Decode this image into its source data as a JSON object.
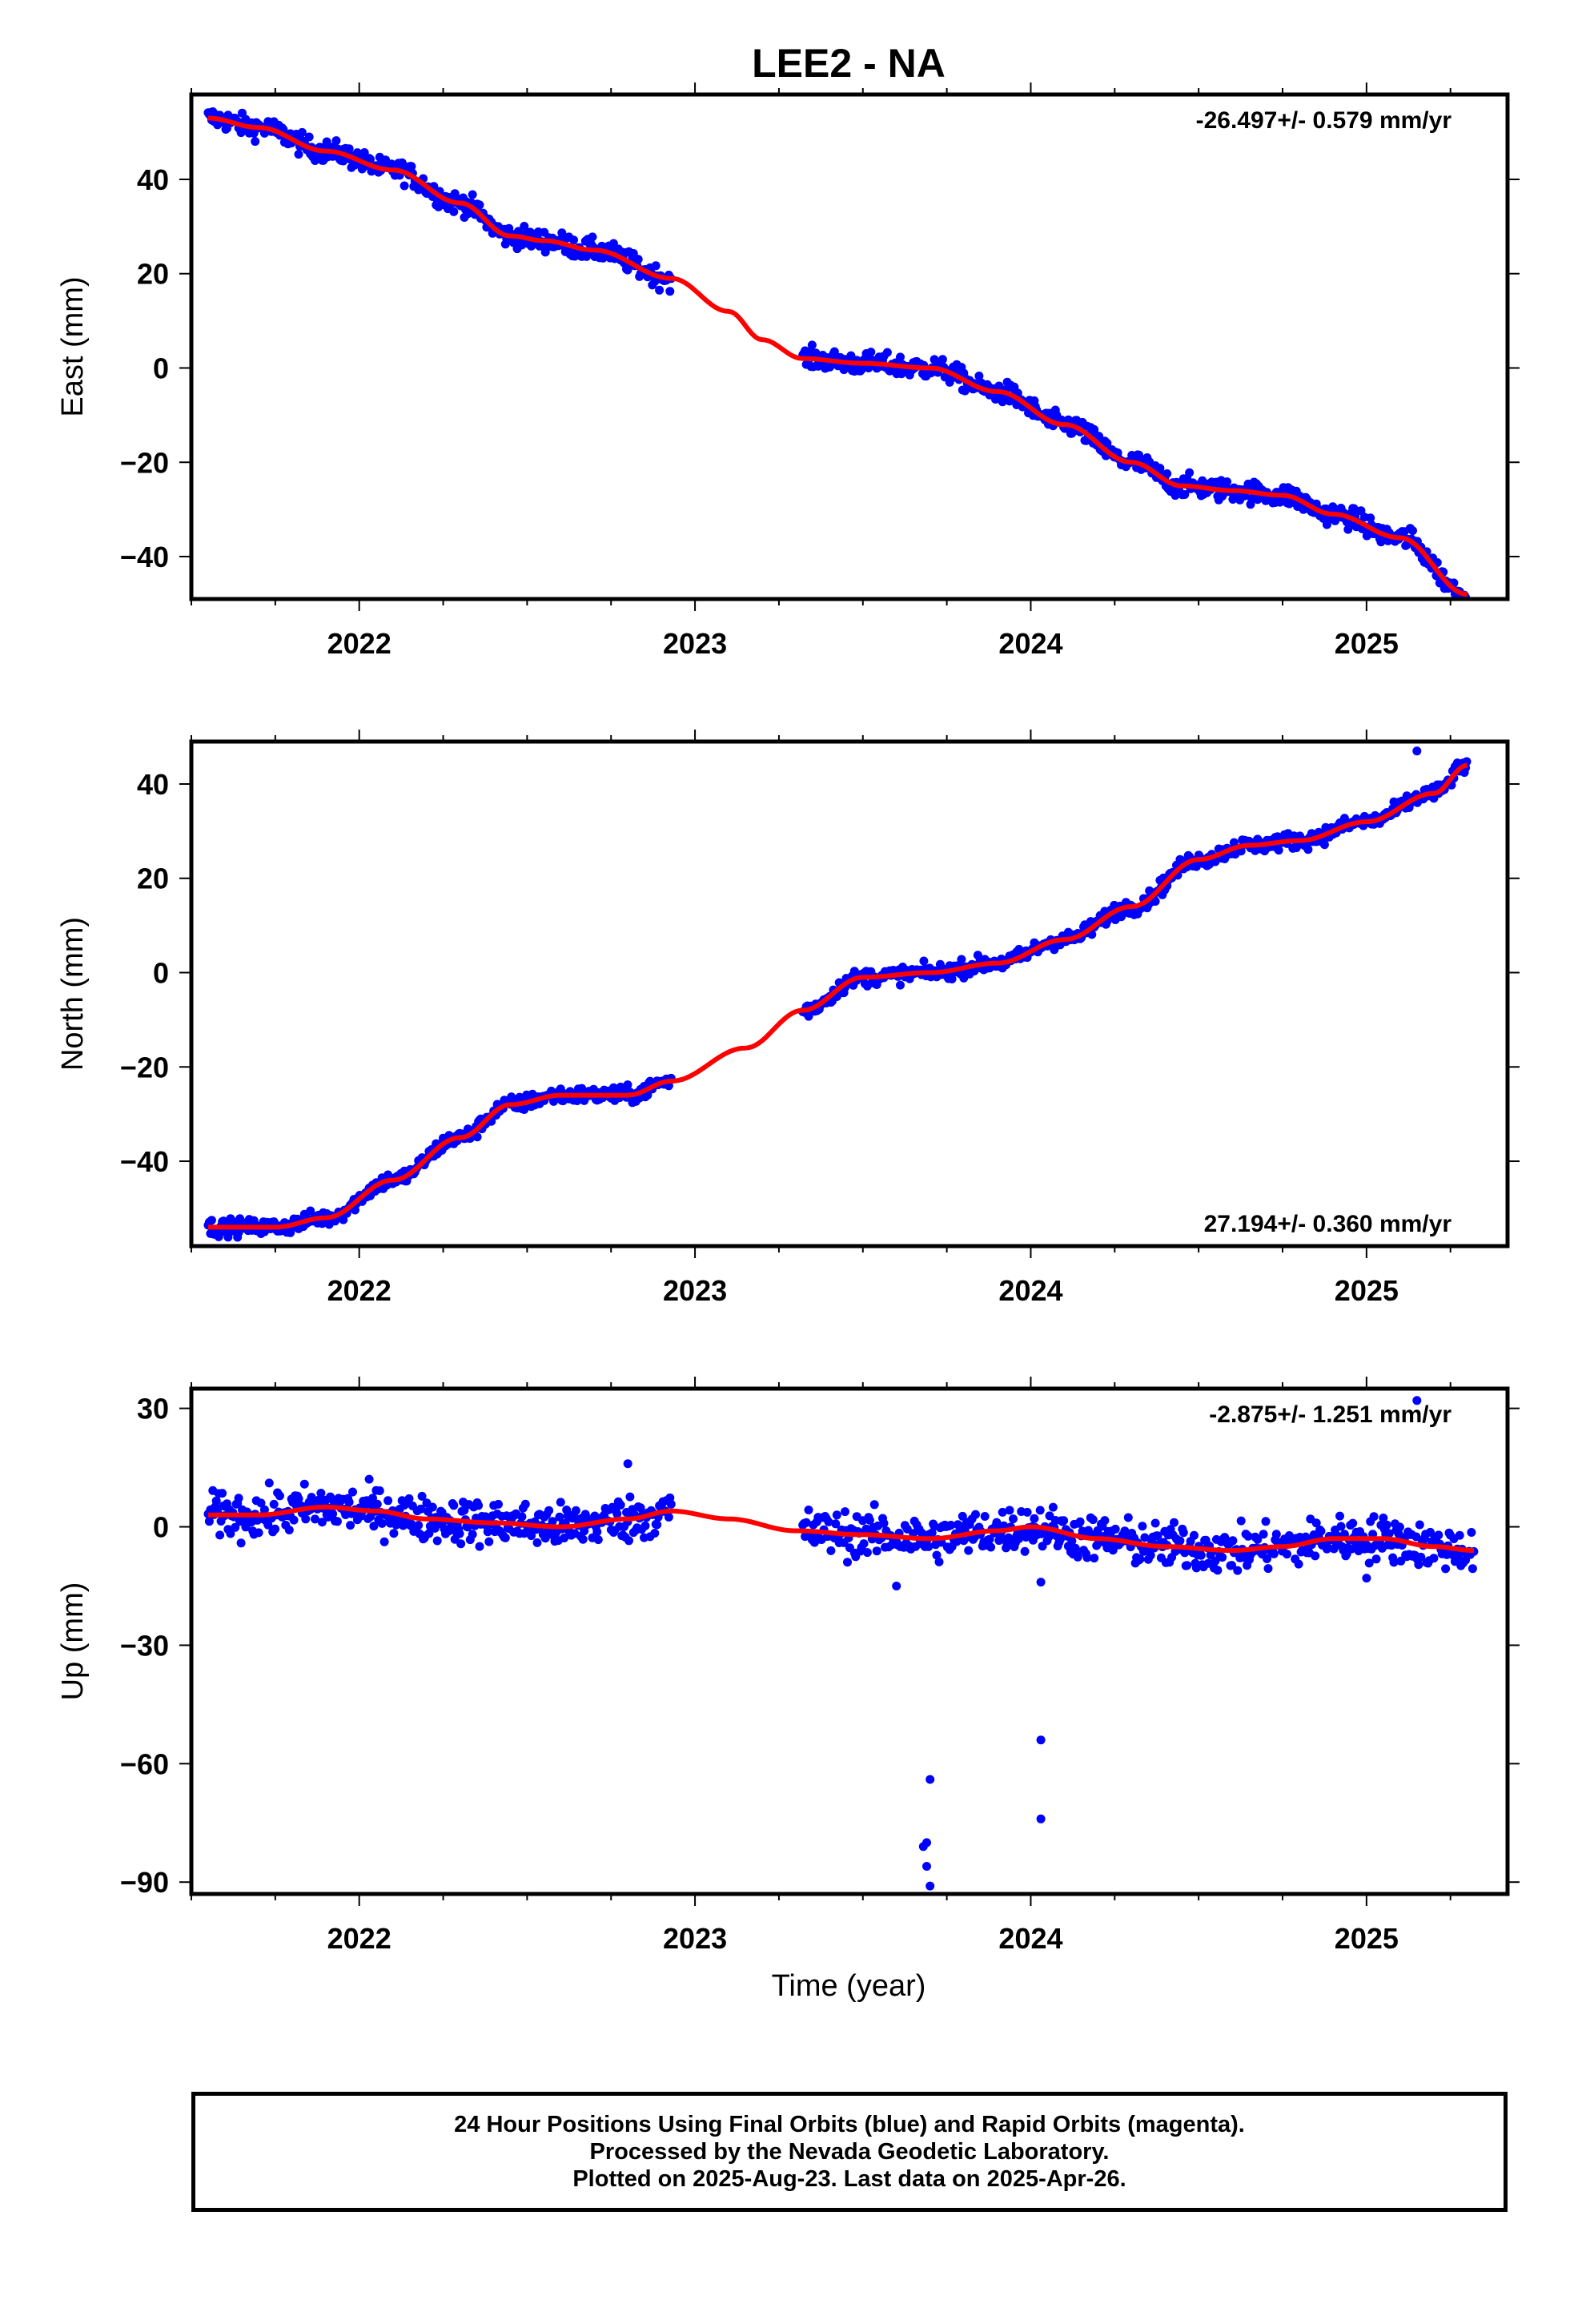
{
  "title": "LEE2 - NA",
  "colors": {
    "data": "#0000ff",
    "model": "#ff0000",
    "frame": "#000000"
  },
  "xlabel": "Time (year)",
  "footer": {
    "line1": "24 Hour Positions Using Final Orbits (blue) and Rapid Orbits (magenta).",
    "line2": "Processed by the Nevada Geodetic Laboratory.",
    "line3": "Plotted on 2025-Aug-23. Last data on 2025-Apr-26."
  },
  "chart_data": [
    {
      "type": "scatter",
      "component": "east",
      "ylabel": "East (mm)",
      "rate": "-26.497+/- 0.579 mm/yr",
      "rate_placement": "top-right",
      "xlim": [
        2021.5,
        2025.42
      ],
      "ylim": [
        -49,
        58
      ],
      "xticks": [
        2022,
        2023,
        2024,
        2025
      ],
      "xtick_labels": [
        "2022",
        "2023",
        "2024",
        "2025"
      ],
      "yticks": [
        -40,
        -20,
        0,
        20,
        40
      ],
      "ytick_labels": [
        "−40",
        "−20",
        "0",
        "20",
        "40"
      ],
      "data_gap": [
        2022.93,
        2023.32
      ],
      "model_curve": {
        "x": [
          2021.55,
          2021.7,
          2021.9,
          2022.1,
          2022.3,
          2022.45,
          2022.55,
          2022.7,
          2022.93,
          2023.1,
          2023.2,
          2023.32,
          2023.5,
          2023.7,
          2023.9,
          2024.1,
          2024.3,
          2024.45,
          2024.6,
          2024.75,
          2024.9,
          2025.1,
          2025.3
        ],
        "y": [
          53,
          51,
          46,
          42,
          35,
          28,
          27,
          25,
          19,
          12,
          6,
          2,
          1,
          0,
          -5,
          -12,
          -20,
          -25,
          -26,
          -27,
          -31,
          -36,
          -48
        ]
      },
      "scatter_spread": 1.6,
      "outliers": [
        {
          "x": 2025.13,
          "y": -34
        }
      ]
    },
    {
      "type": "scatter",
      "component": "north",
      "ylabel": "North (mm)",
      "rate": "27.194+/- 0.360 mm/yr",
      "rate_placement": "bottom-right",
      "xlim": [
        2021.5,
        2025.42
      ],
      "ylim": [
        -58,
        49
      ],
      "xticks": [
        2022,
        2023,
        2024,
        2025
      ],
      "xtick_labels": [
        "2022",
        "2023",
        "2024",
        "2025"
      ],
      "yticks": [
        -40,
        -20,
        0,
        20,
        40
      ],
      "ytick_labels": [
        "−40",
        "−20",
        "0",
        "20",
        "40"
      ],
      "data_gap": [
        2022.93,
        2023.32
      ],
      "model_curve": {
        "x": [
          2021.55,
          2021.75,
          2021.9,
          2022.1,
          2022.3,
          2022.45,
          2022.6,
          2022.8,
          2022.93,
          2023.15,
          2023.32,
          2023.5,
          2023.7,
          2023.9,
          2024.1,
          2024.3,
          2024.5,
          2024.65,
          2024.8,
          2025.0,
          2025.2,
          2025.3
        ],
        "y": [
          -54,
          -54,
          -52,
          -44,
          -35,
          -28,
          -26,
          -26,
          -23,
          -16,
          -8,
          -1,
          0,
          2,
          7,
          14,
          24,
          27,
          28,
          32,
          38,
          44
        ]
      },
      "scatter_spread": 1.2,
      "outliers": [
        {
          "x": 2025.15,
          "y": 47
        }
      ]
    },
    {
      "type": "scatter",
      "component": "up",
      "ylabel": "Up (mm)",
      "rate": "-2.875+/- 1.251 mm/yr",
      "rate_placement": "top-right",
      "xlim": [
        2021.5,
        2025.42
      ],
      "ylim": [
        -93,
        35
      ],
      "xticks": [
        2022,
        2023,
        2024,
        2025
      ],
      "xtick_labels": [
        "2022",
        "2023",
        "2024",
        "2025"
      ],
      "yticks": [
        -90,
        -60,
        -30,
        0,
        30
      ],
      "ytick_labels": [
        "−90",
        "−60",
        "−30",
        "0",
        "30"
      ],
      "data_gap": [
        2022.93,
        2023.32
      ],
      "model_curve": {
        "x": [
          2021.55,
          2021.7,
          2021.9,
          2022.05,
          2022.2,
          2022.4,
          2022.6,
          2022.8,
          2022.93,
          2023.1,
          2023.3,
          2023.5,
          2023.7,
          2023.9,
          2024.0,
          2024.2,
          2024.4,
          2024.6,
          2024.75,
          2024.9,
          2025.05,
          2025.2,
          2025.32
        ],
        "y": [
          3,
          3,
          5,
          4,
          2,
          1,
          0,
          2,
          4,
          2,
          -1,
          -2,
          -3,
          -1,
          0,
          -3,
          -5,
          -6,
          -5,
          -3,
          -3,
          -5,
          -6
        ]
      },
      "scatter_spread": 4,
      "outliers": [
        {
          "x": 2023.7,
          "y": -64
        },
        {
          "x": 2023.69,
          "y": -80
        },
        {
          "x": 2023.68,
          "y": -81
        },
        {
          "x": 2023.69,
          "y": -86
        },
        {
          "x": 2023.7,
          "y": -91
        },
        {
          "x": 2024.03,
          "y": -54
        },
        {
          "x": 2024.03,
          "y": -74
        },
        {
          "x": 2024.03,
          "y": -14
        },
        {
          "x": 2025.15,
          "y": 32
        },
        {
          "x": 2025.0,
          "y": -13
        },
        {
          "x": 2022.8,
          "y": 16
        },
        {
          "x": 2023.6,
          "y": -15
        }
      ]
    }
  ]
}
